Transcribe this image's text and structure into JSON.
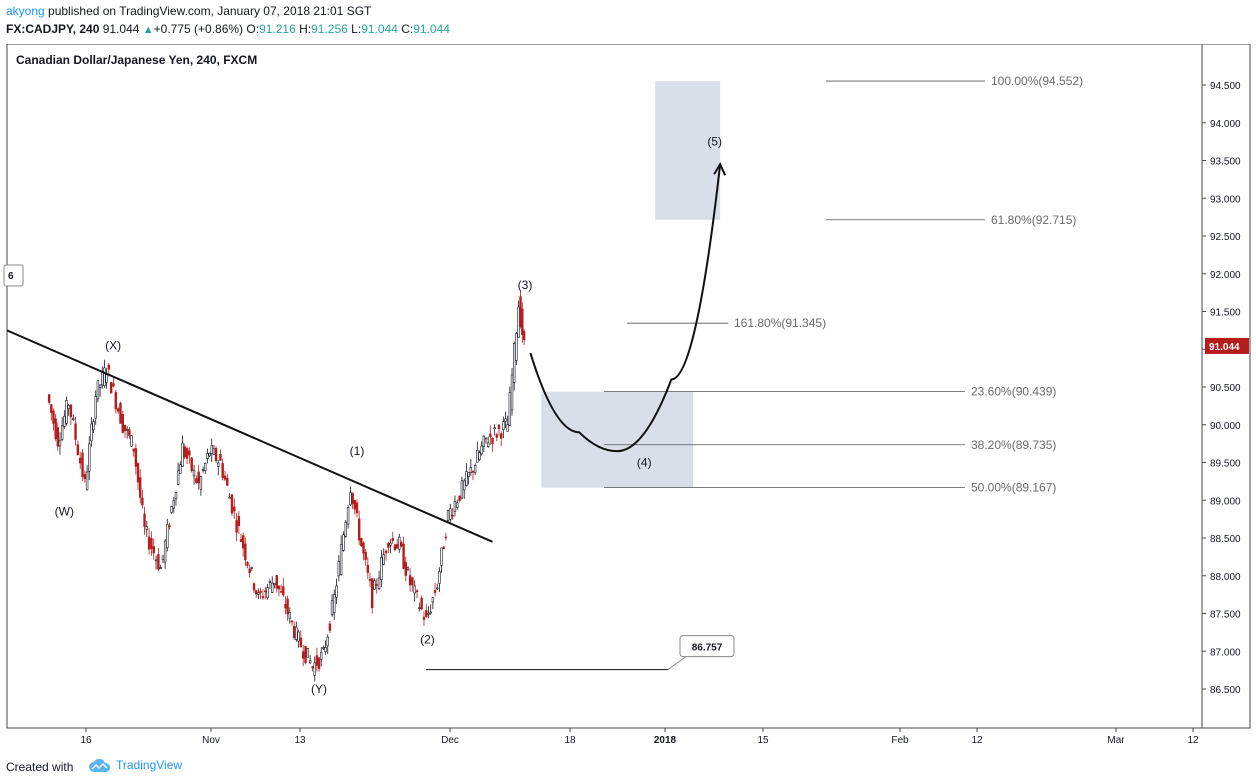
{
  "header": {
    "author": "akyong",
    "published": " published on TradingView.com, January 07, 2018 21:01 SGT",
    "symbol": "FX:CADJPY, 240",
    "price": "91.044",
    "change": "+0.775 (+0.86%)",
    "o_label": "O:",
    "o_value": "91.216",
    "h_label": "H:",
    "h_value": "91.256",
    "l_label": "L:",
    "l_value": "91.044",
    "c_label": "C:",
    "c_value": "91.044"
  },
  "footer": {
    "created": "Created with",
    "brand": "TradingView"
  },
  "colors": {
    "up": "#131722",
    "down": "#b71c1c",
    "zone": "#d5dbe7",
    "price_tag": "#b71c1c",
    "brand": "#2196f3"
  },
  "chart_data": {
    "type": "line",
    "title": "Canadian Dollar/Japanese Yen, 240, FXCM",
    "ylim": [
      86.0,
      95.0
    ],
    "y_ticks": [
      "86.500",
      "87.000",
      "87.500",
      "88.000",
      "88.500",
      "89.000",
      "89.500",
      "90.000",
      "90.500",
      "91.000",
      "91.500",
      "92.000",
      "92.500",
      "93.000",
      "93.500",
      "94.000",
      "94.500"
    ],
    "x_ticks": [
      "16",
      "Nov",
      "13",
      "Dec",
      "18",
      "2018",
      "15",
      "Feb",
      "12",
      "Mar",
      "12"
    ],
    "last_price": "91.044",
    "left_badge": "6",
    "low_marker": "86.757",
    "price_series": {
      "x": [
        "Oct 09",
        "Oct 11",
        "Oct 13",
        "Oct 16",
        "Oct 18",
        "Oct 20",
        "Oct 23",
        "Oct 25",
        "Oct 27",
        "Oct 30",
        "Nov 01",
        "Nov 03",
        "Nov 06",
        "Nov 08",
        "Nov 10",
        "Nov 13",
        "Nov 15",
        "Nov 17",
        "Nov 20",
        "Nov 22",
        "Nov 24",
        "Nov 27",
        "Nov 29",
        "Dec 01",
        "Dec 04",
        "Dec 06",
        "Dec 08",
        "Dec 11",
        "Dec 13",
        "Dec 15",
        "Dec 18",
        "Dec 20",
        "Dec 22",
        "Dec 25",
        "Dec 27",
        "Dec 29",
        "Jan 02",
        "Jan 04",
        "Jan 05"
      ],
      "y": [
        90.4,
        89.8,
        90.3,
        89.2,
        90.4,
        90.75,
        90.0,
        89.7,
        88.6,
        88.1,
        88.9,
        89.7,
        89.2,
        89.65,
        89.5,
        88.7,
        88.2,
        87.7,
        87.95,
        87.6,
        87.2,
        86.8,
        86.95,
        87.7,
        89.2,
        88.4,
        87.7,
        88.5,
        88.4,
        87.9,
        87.4,
        87.9,
        88.8,
        89.2,
        89.5,
        89.8,
        90.0,
        91.6,
        91.04
      ]
    },
    "trendline": {
      "x1": "Oct 03",
      "y1": 91.25,
      "x2": "Dec 30",
      "y2": 88.45
    },
    "fib_levels": [
      {
        "label": "100.00%(94.552)",
        "value": 94.552
      },
      {
        "label": "61.80%(92.715)",
        "value": 92.715
      },
      {
        "label": "161.80%(91.345)",
        "value": 91.345
      },
      {
        "label": "23.60%(90.439)",
        "value": 90.439
      },
      {
        "label": "38.20%(89.735)",
        "value": 89.735
      },
      {
        "label": "50.00%(89.167)",
        "value": 89.167
      }
    ],
    "zones": [
      {
        "x_start": "Jan 08",
        "x_end": "Feb 05",
        "y_low": 89.167,
        "y_high": 90.439
      },
      {
        "x_start": "Jan 29",
        "x_end": "Feb 10",
        "y_low": 92.715,
        "y_high": 94.552
      }
    ],
    "projection": [
      [
        "Jan 06",
        90.95
      ],
      [
        "Jan 15",
        89.9
      ],
      [
        "Jan 22",
        89.65
      ],
      [
        "Feb 01",
        90.6
      ],
      [
        "Feb 10",
        93.45
      ]
    ],
    "wave_labels": [
      {
        "text": "(W)",
        "x": "Oct 12",
        "y": 88.8
      },
      {
        "text": "(X)",
        "x": "Oct 21",
        "y": 91.0
      },
      {
        "text": "(Y)",
        "x": "Nov 28",
        "y": 86.45
      },
      {
        "text": "(1)",
        "x": "Dec 05",
        "y": 89.6
      },
      {
        "text": "(2)",
        "x": "Dec 18",
        "y": 87.1
      },
      {
        "text": "(3)",
        "x": "Jan 05",
        "y": 91.8
      },
      {
        "text": "(4)",
        "x": "Jan 27",
        "y": 89.45
      },
      {
        "text": "(5)",
        "x": "Feb 09",
        "y": 93.7
      }
    ]
  }
}
